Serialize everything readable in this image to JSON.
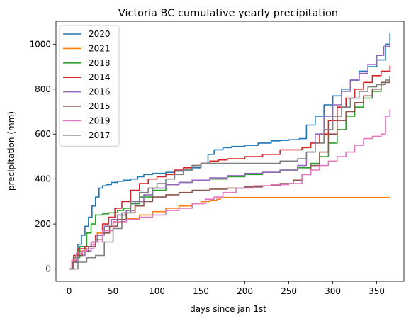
{
  "chart_data": {
    "type": "line",
    "title": "Victoria BC cumulative yearly precipitation",
    "xlabel": "days since jan 1st",
    "ylabel": "precipitation (mm)",
    "xlim": [
      -15,
      381
    ],
    "ylim": [
      -55,
      1102
    ],
    "xticks": [
      0,
      50,
      100,
      150,
      200,
      250,
      300,
      350
    ],
    "yticks": [
      0,
      200,
      400,
      600,
      800,
      1000
    ],
    "grid": false,
    "legend_position": "top-left",
    "series": [
      {
        "name": "2020",
        "color": "#1f77b4",
        "x": [
          0,
          5,
          10,
          14,
          18,
          22,
          26,
          30,
          34,
          38,
          42,
          48,
          55,
          62,
          70,
          78,
          85,
          95,
          110,
          120,
          130,
          140,
          150,
          158,
          165,
          175,
          185,
          200,
          215,
          230,
          240,
          250,
          262,
          270,
          280,
          290,
          300,
          310,
          320,
          330,
          340,
          350,
          360,
          365
        ],
        "y": [
          0,
          60,
          110,
          150,
          190,
          230,
          280,
          320,
          360,
          370,
          375,
          385,
          390,
          395,
          400,
          410,
          420,
          425,
          430,
          435,
          440,
          450,
          470,
          510,
          530,
          540,
          545,
          550,
          560,
          570,
          572,
          575,
          580,
          640,
          680,
          730,
          770,
          800,
          840,
          880,
          900,
          930,
          1000,
          1050
        ]
      },
      {
        "name": "2021",
        "color": "#ff7f0e",
        "x": [
          0,
          3,
          8,
          12,
          18,
          25,
          32,
          40,
          50,
          65,
          80,
          95,
          110,
          125,
          140,
          150,
          160,
          168,
          172,
          200,
          250,
          300,
          350,
          365
        ],
        "y": [
          0,
          40,
          60,
          80,
          100,
          120,
          160,
          190,
          210,
          225,
          240,
          255,
          270,
          280,
          290,
          300,
          305,
          310,
          318,
          318,
          318,
          318,
          318,
          318
        ]
      },
      {
        "name": "2018",
        "color": "#2ca02c",
        "x": [
          0,
          5,
          12,
          20,
          25,
          30,
          38,
          45,
          55,
          62,
          70,
          80,
          95,
          110,
          125,
          140,
          160,
          180,
          200,
          220,
          240,
          260,
          275,
          285,
          295,
          305,
          315,
          325,
          335,
          345,
          355,
          365
        ],
        "y": [
          0,
          50,
          100,
          160,
          200,
          240,
          245,
          250,
          260,
          270,
          290,
          320,
          350,
          375,
          385,
          395,
          400,
          410,
          420,
          430,
          440,
          450,
          470,
          500,
          560,
          620,
          680,
          720,
          760,
          790,
          830,
          860
        ]
      },
      {
        "name": "2014",
        "color": "#d62728",
        "x": [
          0,
          5,
          10,
          18,
          25,
          30,
          38,
          45,
          52,
          60,
          70,
          80,
          90,
          100,
          110,
          120,
          130,
          140,
          150,
          160,
          170,
          180,
          200,
          220,
          240,
          255,
          265,
          275,
          285,
          295,
          305,
          315,
          325,
          335,
          345,
          355,
          365
        ],
        "y": [
          0,
          60,
          90,
          100,
          110,
          150,
          200,
          230,
          270,
          300,
          350,
          380,
          400,
          410,
          420,
          440,
          450,
          460,
          470,
          480,
          485,
          490,
          500,
          510,
          530,
          530,
          540,
          560,
          600,
          660,
          720,
          760,
          800,
          830,
          860,
          880,
          905
        ]
      },
      {
        "name": "2016",
        "color": "#9467bd",
        "x": [
          0,
          5,
          10,
          18,
          25,
          32,
          40,
          48,
          55,
          65,
          75,
          85,
          95,
          110,
          125,
          140,
          160,
          180,
          200,
          220,
          240,
          260,
          270,
          280,
          290,
          300,
          310,
          320,
          330,
          340,
          350,
          358,
          365
        ],
        "y": [
          0,
          30,
          60,
          80,
          120,
          150,
          190,
          220,
          240,
          260,
          300,
          330,
          360,
          375,
          385,
          395,
          405,
          415,
          425,
          430,
          440,
          460,
          520,
          600,
          680,
          730,
          790,
          840,
          870,
          910,
          950,
          990,
          1008
        ]
      },
      {
        "name": "2015",
        "color": "#8c564b",
        "x": [
          0,
          4,
          8,
          15,
          22,
          30,
          38,
          46,
          55,
          65,
          75,
          85,
          95,
          110,
          125,
          140,
          160,
          180,
          200,
          220,
          240,
          255,
          265,
          275,
          285,
          295,
          305,
          315,
          325,
          335,
          345,
          355,
          365
        ],
        "y": [
          0,
          30,
          60,
          80,
          100,
          130,
          160,
          190,
          220,
          250,
          280,
          300,
          320,
          330,
          340,
          350,
          355,
          360,
          365,
          370,
          380,
          395,
          420,
          460,
          520,
          600,
          660,
          700,
          740,
          770,
          800,
          830,
          855
        ]
      },
      {
        "name": "2019",
        "color": "#e377c2",
        "x": [
          0,
          3,
          8,
          15,
          20,
          28,
          38,
          50,
          65,
          80,
          95,
          110,
          125,
          140,
          155,
          165,
          175,
          190,
          210,
          230,
          250,
          265,
          275,
          285,
          295,
          305,
          315,
          325,
          335,
          345,
          355,
          360,
          365
        ],
        "y": [
          0,
          40,
          70,
          80,
          90,
          120,
          170,
          210,
          220,
          230,
          240,
          260,
          270,
          290,
          310,
          320,
          340,
          360,
          370,
          375,
          380,
          420,
          440,
          460,
          480,
          500,
          520,
          550,
          580,
          590,
          600,
          680,
          710
        ]
      },
      {
        "name": "2017",
        "color": "#7f7f7f",
        "x": [
          0,
          10,
          20,
          30,
          40,
          50,
          60,
          70,
          80,
          90,
          100,
          110,
          120,
          130,
          140,
          150,
          160,
          180,
          200,
          220,
          240,
          260,
          270,
          280,
          290,
          300,
          310,
          320,
          330,
          340,
          350,
          360,
          365
        ],
        "y": [
          0,
          30,
          50,
          60,
          120,
          180,
          250,
          300,
          340,
          360,
          380,
          400,
          420,
          440,
          460,
          470,
          470,
          470,
          470,
          470,
          480,
          490,
          520,
          560,
          620,
          680,
          720,
          760,
          790,
          810,
          820,
          840,
          850
        ]
      }
    ]
  }
}
